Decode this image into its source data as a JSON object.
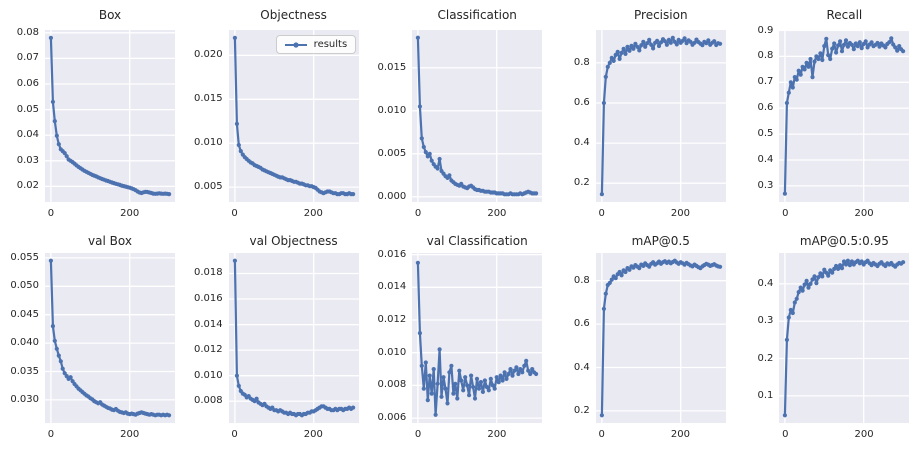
{
  "figure": {
    "background_color": "#ffffff",
    "axes_background_color": "#eaeaf2",
    "grid_color": "#ffffff",
    "line_color": "#4c72b0",
    "text_color": "#262626"
  },
  "chart_data": {
    "type": "line",
    "legend": {
      "label": "results",
      "on_chart": "Objectness",
      "position": "upper right"
    },
    "xlim": [
      -15,
      315
    ],
    "xticks": {
      "vals": [
        0,
        200
      ],
      "labels": [
        "0",
        "200"
      ]
    },
    "x": [
      0,
      5,
      10,
      15,
      20,
      25,
      30,
      35,
      40,
      45,
      50,
      55,
      60,
      65,
      70,
      75,
      80,
      85,
      90,
      95,
      100,
      105,
      110,
      115,
      120,
      125,
      130,
      135,
      140,
      145,
      150,
      155,
      160,
      165,
      170,
      175,
      180,
      185,
      190,
      195,
      200,
      205,
      210,
      215,
      220,
      225,
      230,
      235,
      240,
      245,
      250,
      255,
      260,
      265,
      270,
      275,
      280,
      285,
      290,
      295,
      300
    ],
    "charts": [
      {
        "title": "Box",
        "ylim": [
          0.0139,
          0.0811
        ],
        "yticks": {
          "vals": [
            0.02,
            0.03,
            0.04,
            0.05,
            0.06,
            0.07,
            0.08
          ],
          "labels": [
            "0.02",
            "0.03",
            "0.04",
            "0.05",
            "0.06",
            "0.07",
            "0.08"
          ]
        },
        "values": [
          0.078,
          0.053,
          0.0455,
          0.0398,
          0.0365,
          0.0345,
          0.0338,
          0.033,
          0.0318,
          0.0305,
          0.03,
          0.0295,
          0.0289,
          0.0282,
          0.0276,
          0.0271,
          0.0266,
          0.0261,
          0.0257,
          0.0253,
          0.0249,
          0.0245,
          0.0242,
          0.0239,
          0.0235,
          0.0232,
          0.0229,
          0.0226,
          0.0223,
          0.0221,
          0.0218,
          0.0215,
          0.0213,
          0.021,
          0.0208,
          0.0206,
          0.0203,
          0.0201,
          0.0199,
          0.0197,
          0.0195,
          0.0192,
          0.0189,
          0.0185,
          0.018,
          0.0176,
          0.0174,
          0.0177,
          0.0179,
          0.0178,
          0.0176,
          0.0174,
          0.0172,
          0.0171,
          0.0172,
          0.0173,
          0.0172,
          0.0171,
          0.0172,
          0.0171,
          0.017
        ]
      },
      {
        "title": "Objectness",
        "ylim": [
          0.0033,
          0.0229
        ],
        "yticks": {
          "vals": [
            0.005,
            0.01,
            0.015,
            0.02
          ],
          "labels": [
            "0.005",
            "0.010",
            "0.015",
            "0.020"
          ]
        },
        "values": [
          0.022,
          0.0122,
          0.0098,
          0.0091,
          0.0087,
          0.0084,
          0.0082,
          0.008,
          0.0078,
          0.0077,
          0.0075,
          0.0074,
          0.0073,
          0.0072,
          0.007,
          0.0069,
          0.0068,
          0.0067,
          0.0066,
          0.0065,
          0.0064,
          0.0063,
          0.0062,
          0.0061,
          0.0061,
          0.006,
          0.0059,
          0.0058,
          0.0058,
          0.0057,
          0.0056,
          0.0056,
          0.0055,
          0.0054,
          0.0054,
          0.0053,
          0.0052,
          0.0052,
          0.0051,
          0.0051,
          0.005,
          0.0049,
          0.0047,
          0.0045,
          0.0044,
          0.0043,
          0.0044,
          0.0045,
          0.0045,
          0.0044,
          0.0043,
          0.0043,
          0.0042,
          0.0042,
          0.0043,
          0.0043,
          0.0042,
          0.0042,
          0.0043,
          0.0042,
          0.0042
        ]
      },
      {
        "title": "Classification",
        "ylim": [
          -0.0006,
          0.0194
        ],
        "yticks": {
          "vals": [
            0,
            0.005,
            0.01,
            0.015
          ],
          "labels": [
            "0.000",
            "0.005",
            "0.010",
            "0.015"
          ]
        },
        "values": [
          0.0185,
          0.0105,
          0.0068,
          0.0058,
          0.0052,
          0.0047,
          0.005,
          0.0042,
          0.0038,
          0.0035,
          0.0033,
          0.0044,
          0.003,
          0.0027,
          0.0024,
          0.0022,
          0.0025,
          0.0019,
          0.0017,
          0.0015,
          0.0014,
          0.0013,
          0.0015,
          0.0012,
          0.0011,
          0.001,
          0.0012,
          0.0013,
          0.0011,
          0.0009,
          0.0008,
          0.0008,
          0.0007,
          0.0007,
          0.0006,
          0.0006,
          0.0006,
          0.0005,
          0.0005,
          0.0005,
          0.0004,
          0.0004,
          0.0004,
          0.0004,
          0.0003,
          0.0003,
          0.0003,
          0.0004,
          0.0003,
          0.0003,
          0.0003,
          0.0003,
          0.0004,
          0.0003,
          0.0004,
          0.0005,
          0.0006,
          0.0005,
          0.0004,
          0.0004,
          0.0004
        ]
      },
      {
        "title": "Precision",
        "ylim": [
          0.106,
          0.964
        ],
        "yticks": {
          "vals": [
            0.2,
            0.4,
            0.6,
            0.8
          ],
          "labels": [
            "0.2",
            "0.4",
            "0.6",
            "0.8"
          ]
        },
        "values": [
          0.145,
          0.6,
          0.73,
          0.78,
          0.8,
          0.825,
          0.81,
          0.84,
          0.855,
          0.82,
          0.85,
          0.87,
          0.845,
          0.88,
          0.86,
          0.885,
          0.87,
          0.895,
          0.88,
          0.862,
          0.888,
          0.905,
          0.88,
          0.898,
          0.915,
          0.89,
          0.872,
          0.9,
          0.91,
          0.884,
          0.902,
          0.918,
          0.908,
          0.89,
          0.915,
          0.9,
          0.925,
          0.905,
          0.892,
          0.915,
          0.9,
          0.91,
          0.922,
          0.898,
          0.912,
          0.905,
          0.89,
          0.9,
          0.916,
          0.904,
          0.896,
          0.888,
          0.905,
          0.898,
          0.912,
          0.89,
          0.9,
          0.908,
          0.889,
          0.898,
          0.895
        ]
      },
      {
        "title": "Recall",
        "ylim": [
          0.238,
          0.902
        ],
        "yticks": {
          "vals": [
            0.3,
            0.4,
            0.5,
            0.6,
            0.7,
            0.8,
            0.9
          ],
          "labels": [
            "0.3",
            "0.4",
            "0.5",
            "0.6",
            "0.7",
            "0.8",
            "0.9"
          ]
        },
        "values": [
          0.27,
          0.62,
          0.66,
          0.7,
          0.68,
          0.72,
          0.71,
          0.745,
          0.73,
          0.76,
          0.75,
          0.775,
          0.76,
          0.79,
          0.72,
          0.78,
          0.8,
          0.79,
          0.812,
          0.786,
          0.84,
          0.868,
          0.805,
          0.79,
          0.83,
          0.85,
          0.815,
          0.842,
          0.858,
          0.82,
          0.845,
          0.862,
          0.838,
          0.852,
          0.845,
          0.828,
          0.85,
          0.84,
          0.855,
          0.832,
          0.848,
          0.858,
          0.835,
          0.846,
          0.854,
          0.84,
          0.845,
          0.852,
          0.838,
          0.85,
          0.842,
          0.835,
          0.848,
          0.855,
          0.87,
          0.846,
          0.835,
          0.822,
          0.84,
          0.828,
          0.82
        ]
      },
      {
        "title": "val Box",
        "ylim": [
          0.02594,
          0.05586
        ],
        "yticks": {
          "vals": [
            0.03,
            0.035,
            0.04,
            0.045,
            0.05,
            0.055
          ],
          "labels": [
            "0.030",
            "0.035",
            "0.040",
            "0.045",
            "0.050",
            "0.055"
          ]
        },
        "values": [
          0.0545,
          0.043,
          0.0404,
          0.039,
          0.0378,
          0.0368,
          0.0355,
          0.0347,
          0.0342,
          0.0337,
          0.034,
          0.0333,
          0.0328,
          0.0324,
          0.032,
          0.0317,
          0.0314,
          0.0311,
          0.0308,
          0.0306,
          0.0303,
          0.0301,
          0.0298,
          0.0296,
          0.0294,
          0.0296,
          0.0292,
          0.029,
          0.0288,
          0.0286,
          0.0285,
          0.0283,
          0.0282,
          0.0284,
          0.0281,
          0.0279,
          0.0278,
          0.0277,
          0.0278,
          0.0276,
          0.0275,
          0.0276,
          0.0275,
          0.0274,
          0.0276,
          0.0277,
          0.0278,
          0.0277,
          0.0276,
          0.0275,
          0.0274,
          0.0275,
          0.0274,
          0.0273,
          0.0274,
          0.0274,
          0.0273,
          0.0274,
          0.0273,
          0.0274,
          0.0273
        ]
      },
      {
        "title": "val Objectness",
        "ylim": [
          0.006295,
          0.019605
        ],
        "yticks": {
          "vals": [
            0.008,
            0.01,
            0.012,
            0.014,
            0.016,
            0.018
          ],
          "labels": [
            "0.008",
            "0.010",
            "0.012",
            "0.014",
            "0.016",
            "0.018"
          ]
        },
        "values": [
          0.019,
          0.01,
          0.0092,
          0.0088,
          0.0086,
          0.0085,
          0.0083,
          0.0084,
          0.0082,
          0.0081,
          0.008,
          0.0082,
          0.0079,
          0.0078,
          0.0077,
          0.0078,
          0.0076,
          0.0075,
          0.0074,
          0.0075,
          0.0073,
          0.0073,
          0.0072,
          0.0073,
          0.0072,
          0.0071,
          0.0071,
          0.007,
          0.0071,
          0.007,
          0.007,
          0.0069,
          0.007,
          0.007,
          0.0069,
          0.007,
          0.007,
          0.0071,
          0.0071,
          0.0072,
          0.0072,
          0.0073,
          0.0074,
          0.0075,
          0.0076,
          0.0076,
          0.0075,
          0.0074,
          0.0074,
          0.0073,
          0.0073,
          0.0074,
          0.0073,
          0.0074,
          0.0074,
          0.0073,
          0.0074,
          0.0074,
          0.0075,
          0.0074,
          0.0075
        ]
      },
      {
        "title": "val Classification",
        "ylim": [
          0.0057,
          0.0161
        ],
        "yticks": {
          "vals": [
            0.006,
            0.008,
            0.01,
            0.012,
            0.014,
            0.016
          ],
          "labels": [
            "0.006",
            "0.008",
            "0.010",
            "0.012",
            "0.014",
            "0.016"
          ]
        },
        "values": [
          0.0155,
          0.0112,
          0.0092,
          0.0078,
          0.0094,
          0.0071,
          0.0086,
          0.0075,
          0.009,
          0.0062,
          0.0081,
          0.0102,
          0.0073,
          0.0085,
          0.0078,
          0.0069,
          0.0088,
          0.0092,
          0.0075,
          0.0081,
          0.0072,
          0.0089,
          0.0083,
          0.0077,
          0.0085,
          0.008,
          0.0074,
          0.0086,
          0.0079,
          0.0072,
          0.0084,
          0.0078,
          0.0082,
          0.0076,
          0.0083,
          0.0079,
          0.0077,
          0.0084,
          0.008,
          0.0078,
          0.0085,
          0.0082,
          0.0086,
          0.0083,
          0.0088,
          0.0084,
          0.0087,
          0.009,
          0.0086,
          0.0089,
          0.0091,
          0.0087,
          0.009,
          0.0088,
          0.0092,
          0.0095,
          0.0089,
          0.0087,
          0.009,
          0.0088,
          0.0087
        ]
      },
      {
        "title": "mAP@0.5",
        "ylim": [
          0.1444,
          0.9276
        ],
        "yticks": {
          "vals": [
            0.2,
            0.4,
            0.6,
            0.8
          ],
          "labels": [
            "0.2",
            "0.4",
            "0.6",
            "0.8"
          ]
        },
        "values": [
          0.18,
          0.67,
          0.74,
          0.78,
          0.79,
          0.805,
          0.82,
          0.812,
          0.83,
          0.84,
          0.825,
          0.848,
          0.84,
          0.858,
          0.85,
          0.866,
          0.86,
          0.872,
          0.865,
          0.858,
          0.874,
          0.868,
          0.88,
          0.872,
          0.865,
          0.878,
          0.885,
          0.874,
          0.88,
          0.888,
          0.878,
          0.885,
          0.89,
          0.882,
          0.888,
          0.88,
          0.886,
          0.892,
          0.884,
          0.878,
          0.885,
          0.88,
          0.874,
          0.882,
          0.876,
          0.87,
          0.866,
          0.874,
          0.868,
          0.862,
          0.858,
          0.866,
          0.872,
          0.878,
          0.874,
          0.868,
          0.872,
          0.876,
          0.87,
          0.866,
          0.864
        ]
      },
      {
        "title": "mAP@0.5:0.95",
        "ylim": [
          0.0273,
          0.4827
        ],
        "yticks": {
          "vals": [
            0.1,
            0.2,
            0.3,
            0.4
          ],
          "labels": [
            "0.1",
            "0.2",
            "0.3",
            "0.4"
          ]
        },
        "values": [
          0.048,
          0.25,
          0.31,
          0.33,
          0.322,
          0.35,
          0.36,
          0.378,
          0.39,
          0.382,
          0.398,
          0.408,
          0.39,
          0.4,
          0.412,
          0.42,
          0.402,
          0.418,
          0.428,
          0.42,
          0.438,
          0.43,
          0.422,
          0.436,
          0.43,
          0.44,
          0.448,
          0.44,
          0.45,
          0.442,
          0.46,
          0.452,
          0.462,
          0.45,
          0.46,
          0.452,
          0.458,
          0.462,
          0.455,
          0.46,
          0.452,
          0.458,
          0.462,
          0.455,
          0.45,
          0.456,
          0.452,
          0.448,
          0.454,
          0.458,
          0.452,
          0.448,
          0.455,
          0.452,
          0.456,
          0.45,
          0.446,
          0.452,
          0.456,
          0.454,
          0.458
        ]
      }
    ]
  }
}
